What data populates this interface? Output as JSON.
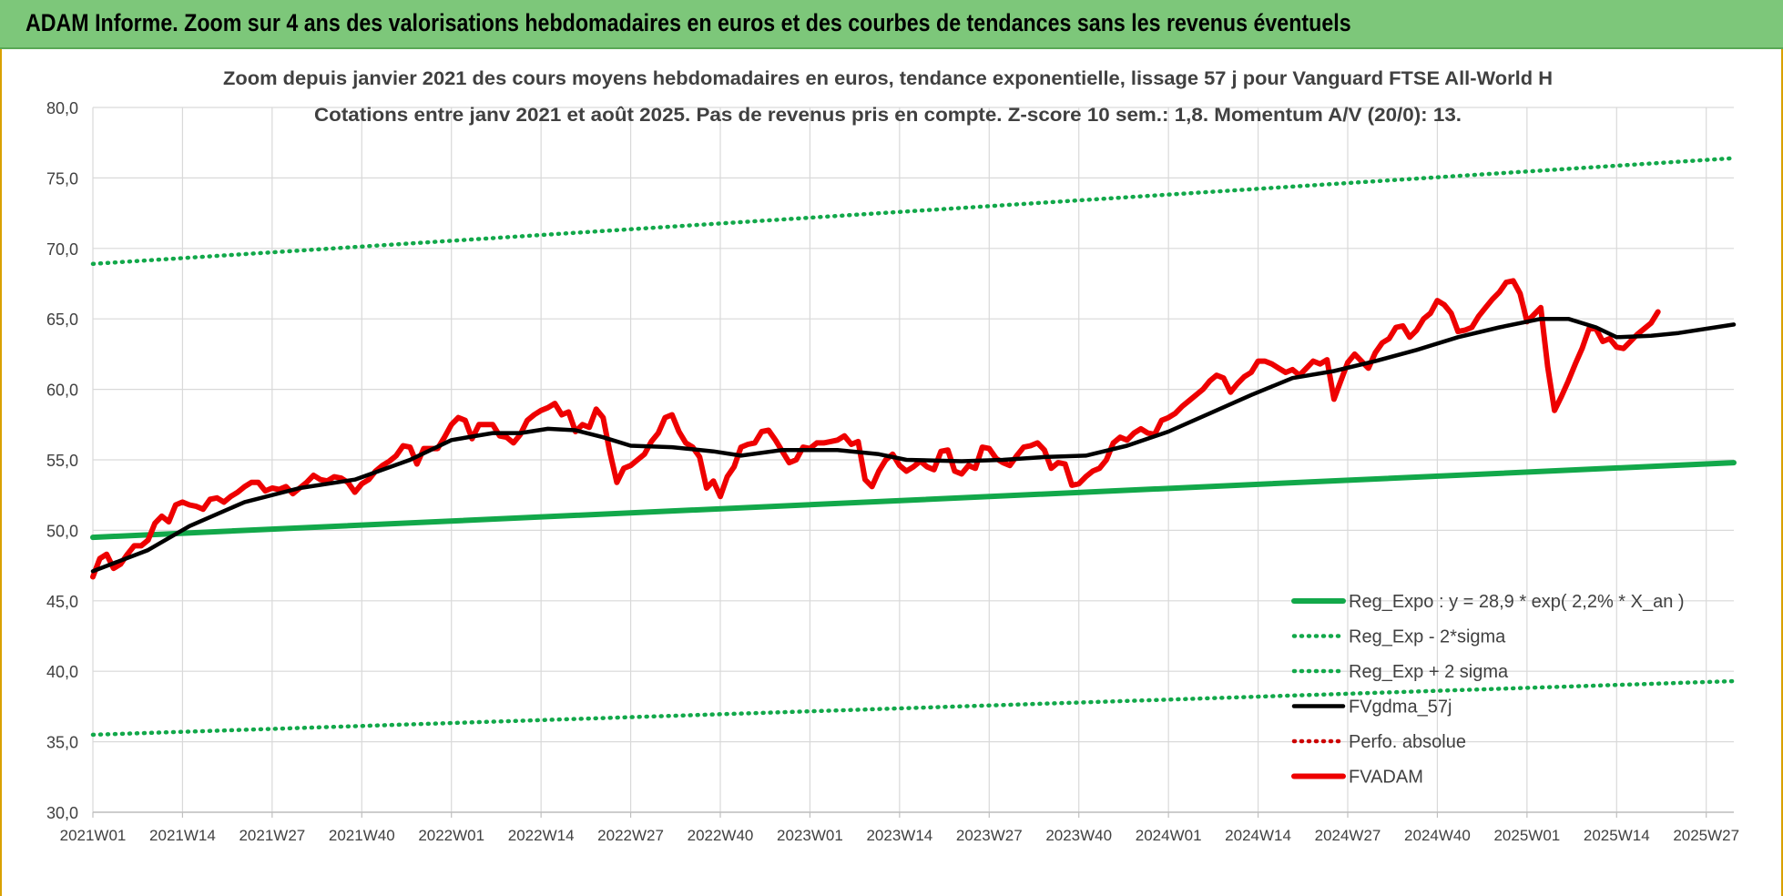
{
  "banner": {
    "title": "ADAM Informe. Zoom sur 4 ans des valorisations hebdomadaires en euros et des courbes de tendances sans les revenus éventuels"
  },
  "colors": {
    "banner": "#7dc77a",
    "regression": "#12a84a",
    "smoothed": "#000000",
    "price": "#ee0000",
    "perf": "#cc0000",
    "grid": "#d9d9d9",
    "text": "#404040"
  },
  "chart_data": {
    "type": "line",
    "title": "Zoom depuis janvier 2021 des cours moyens hebdomadaires en euros, tendance exponentielle, lissage 57 j pour Vanguard FTSE All-World H",
    "subtitle": "Cotations entre janv 2021 et août 2025.  Pas de revenus pris en compte. Z-score 10 sem.: 1,8. Momentum A/V (20/0): 13.",
    "xlabel": "",
    "ylabel": "",
    "ylim": [
      30,
      80
    ],
    "y_ticks": [
      "30,0",
      "35,0",
      "40,0",
      "45,0",
      "50,0",
      "55,0",
      "60,0",
      "65,0",
      "70,0",
      "75,0",
      "80,0"
    ],
    "x_tick_labels": [
      "2021W01",
      "2021W14",
      "2021W27",
      "2021W40",
      "2022W01",
      "2022W14",
      "2022W27",
      "2022W40",
      "2023W01",
      "2023W14",
      "2023W27",
      "2023W40",
      "2024W01",
      "2024W14",
      "2024W27",
      "2024W40",
      "2025W01",
      "2025W14",
      "2025W27"
    ],
    "x_tick_index": [
      0,
      13,
      26,
      39,
      52,
      65,
      78,
      91,
      104,
      117,
      130,
      143,
      156,
      169,
      182,
      195,
      208,
      221,
      234
    ],
    "week_count": 239,
    "grid": true,
    "legend_position": "bottom-right",
    "series": [
      {
        "name": "Reg_Expo : y = 28,9 * exp( 2,2% *  X_an )",
        "style": "solid-thick",
        "color": "#12a84a",
        "points": [
          [
            0,
            49.5
          ],
          [
            238,
            54.8
          ]
        ]
      },
      {
        "name": "Reg_Exp - 2*sigma",
        "style": "dotted",
        "color": "#12a84a",
        "points": [
          [
            0,
            35.5
          ],
          [
            238,
            39.3
          ]
        ]
      },
      {
        "name": "Reg_Exp + 2 sigma",
        "style": "dotted",
        "color": "#12a84a",
        "points": [
          [
            0,
            68.9
          ],
          [
            238,
            76.4
          ]
        ]
      },
      {
        "name": "FVgdma_57j",
        "style": "solid",
        "color": "#000000",
        "points": [
          [
            0,
            47.1
          ],
          [
            8,
            48.6
          ],
          [
            14,
            50.3
          ],
          [
            22,
            52.0
          ],
          [
            30,
            53.0
          ],
          [
            38,
            53.6
          ],
          [
            46,
            55.0
          ],
          [
            52,
            56.4
          ],
          [
            58,
            56.9
          ],
          [
            62,
            56.9
          ],
          [
            66,
            57.2
          ],
          [
            70,
            57.1
          ],
          [
            74,
            56.6
          ],
          [
            78,
            56.0
          ],
          [
            84,
            55.9
          ],
          [
            90,
            55.6
          ],
          [
            94,
            55.3
          ],
          [
            100,
            55.7
          ],
          [
            108,
            55.7
          ],
          [
            114,
            55.4
          ],
          [
            118,
            55.0
          ],
          [
            126,
            54.9
          ],
          [
            132,
            55.0
          ],
          [
            138,
            55.2
          ],
          [
            144,
            55.3
          ],
          [
            150,
            56.0
          ],
          [
            156,
            57.0
          ],
          [
            162,
            58.3
          ],
          [
            168,
            59.6
          ],
          [
            174,
            60.8
          ],
          [
            180,
            61.3
          ],
          [
            186,
            62.0
          ],
          [
            192,
            62.8
          ],
          [
            198,
            63.7
          ],
          [
            204,
            64.4
          ],
          [
            210,
            65.0
          ],
          [
            214,
            65.0
          ],
          [
            218,
            64.4
          ],
          [
            221,
            63.7
          ],
          [
            226,
            63.8
          ],
          [
            230,
            64.0
          ],
          [
            238,
            64.6
          ]
        ]
      },
      {
        "name": "Perfo. absolue",
        "style": "dotted",
        "color": "#cc0000",
        "points": []
      },
      {
        "name": "FVADAM",
        "style": "solid-thick",
        "color": "#ee0000",
        "points": [
          [
            0,
            46.7
          ],
          [
            1,
            48.0
          ],
          [
            2,
            48.3
          ],
          [
            3,
            47.3
          ],
          [
            4,
            47.6
          ],
          [
            5,
            48.3
          ],
          [
            6,
            48.9
          ],
          [
            7,
            48.9
          ],
          [
            8,
            49.3
          ],
          [
            9,
            50.5
          ],
          [
            10,
            51.0
          ],
          [
            11,
            50.6
          ],
          [
            12,
            51.8
          ],
          [
            13,
            52.0
          ],
          [
            14,
            51.8
          ],
          [
            15,
            51.7
          ],
          [
            16,
            51.5
          ],
          [
            17,
            52.2
          ],
          [
            18,
            52.3
          ],
          [
            19,
            52.0
          ],
          [
            20,
            52.4
          ],
          [
            21,
            52.7
          ],
          [
            22,
            53.1
          ],
          [
            23,
            53.4
          ],
          [
            24,
            53.4
          ],
          [
            25,
            52.8
          ],
          [
            26,
            53.0
          ],
          [
            27,
            52.9
          ],
          [
            28,
            53.1
          ],
          [
            29,
            52.6
          ],
          [
            30,
            53.0
          ],
          [
            31,
            53.4
          ],
          [
            32,
            53.9
          ],
          [
            33,
            53.6
          ],
          [
            34,
            53.5
          ],
          [
            35,
            53.8
          ],
          [
            36,
            53.7
          ],
          [
            37,
            53.4
          ],
          [
            38,
            52.7
          ],
          [
            39,
            53.3
          ],
          [
            40,
            53.6
          ],
          [
            41,
            54.2
          ],
          [
            42,
            54.6
          ],
          [
            43,
            54.9
          ],
          [
            44,
            55.3
          ],
          [
            45,
            56.0
          ],
          [
            46,
            55.9
          ],
          [
            47,
            54.7
          ],
          [
            48,
            55.8
          ],
          [
            49,
            55.8
          ],
          [
            50,
            55.8
          ],
          [
            51,
            56.6
          ],
          [
            52,
            57.5
          ],
          [
            53,
            58.0
          ],
          [
            54,
            57.8
          ],
          [
            55,
            56.5
          ],
          [
            56,
            57.5
          ],
          [
            57,
            57.5
          ],
          [
            58,
            57.5
          ],
          [
            59,
            56.7
          ],
          [
            60,
            56.6
          ],
          [
            61,
            56.2
          ],
          [
            62,
            56.8
          ],
          [
            63,
            57.8
          ],
          [
            64,
            58.2
          ],
          [
            65,
            58.5
          ],
          [
            66,
            58.7
          ],
          [
            67,
            59.0
          ],
          [
            68,
            58.2
          ],
          [
            69,
            58.4
          ],
          [
            70,
            57.0
          ],
          [
            71,
            57.5
          ],
          [
            72,
            57.3
          ],
          [
            73,
            58.6
          ],
          [
            74,
            58.0
          ],
          [
            75,
            55.5
          ],
          [
            76,
            53.4
          ],
          [
            77,
            54.4
          ],
          [
            78,
            54.6
          ],
          [
            79,
            55.0
          ],
          [
            80,
            55.4
          ],
          [
            81,
            56.3
          ],
          [
            82,
            56.9
          ],
          [
            83,
            58.0
          ],
          [
            84,
            58.2
          ],
          [
            85,
            57.0
          ],
          [
            86,
            56.2
          ],
          [
            87,
            55.9
          ],
          [
            88,
            55.2
          ],
          [
            89,
            53.0
          ],
          [
            90,
            53.5
          ],
          [
            91,
            52.4
          ],
          [
            92,
            53.8
          ],
          [
            93,
            54.5
          ],
          [
            94,
            55.9
          ],
          [
            95,
            56.1
          ],
          [
            96,
            56.2
          ],
          [
            97,
            57.0
          ],
          [
            98,
            57.1
          ],
          [
            99,
            56.4
          ],
          [
            100,
            55.6
          ],
          [
            101,
            54.8
          ],
          [
            102,
            55.0
          ],
          [
            103,
            55.9
          ],
          [
            104,
            55.8
          ],
          [
            105,
            56.2
          ],
          [
            106,
            56.2
          ],
          [
            107,
            56.3
          ],
          [
            108,
            56.4
          ],
          [
            109,
            56.7
          ],
          [
            110,
            56.1
          ],
          [
            111,
            56.3
          ],
          [
            112,
            53.6
          ],
          [
            113,
            53.1
          ],
          [
            114,
            54.2
          ],
          [
            115,
            55.0
          ],
          [
            116,
            55.4
          ],
          [
            117,
            54.6
          ],
          [
            118,
            54.2
          ],
          [
            119,
            54.5
          ],
          [
            120,
            54.9
          ],
          [
            121,
            54.5
          ],
          [
            122,
            54.3
          ],
          [
            123,
            55.6
          ],
          [
            124,
            55.7
          ],
          [
            125,
            54.2
          ],
          [
            126,
            54.0
          ],
          [
            127,
            54.6
          ],
          [
            128,
            54.4
          ],
          [
            129,
            55.9
          ],
          [
            130,
            55.8
          ],
          [
            131,
            55.1
          ],
          [
            132,
            54.8
          ],
          [
            133,
            54.6
          ],
          [
            134,
            55.3
          ],
          [
            135,
            55.9
          ],
          [
            136,
            56.0
          ],
          [
            137,
            56.2
          ],
          [
            138,
            55.7
          ],
          [
            139,
            54.4
          ],
          [
            140,
            54.8
          ],
          [
            141,
            54.7
          ],
          [
            142,
            53.2
          ],
          [
            143,
            53.3
          ],
          [
            144,
            53.8
          ],
          [
            145,
            54.2
          ],
          [
            146,
            54.4
          ],
          [
            147,
            55.0
          ],
          [
            148,
            56.2
          ],
          [
            149,
            56.6
          ],
          [
            150,
            56.4
          ],
          [
            151,
            56.9
          ],
          [
            152,
            57.2
          ],
          [
            153,
            56.9
          ],
          [
            154,
            56.8
          ],
          [
            155,
            57.8
          ],
          [
            156,
            58.0
          ],
          [
            157,
            58.3
          ],
          [
            158,
            58.8
          ],
          [
            159,
            59.2
          ],
          [
            160,
            59.6
          ],
          [
            161,
            60.0
          ],
          [
            162,
            60.6
          ],
          [
            163,
            61.0
          ],
          [
            164,
            60.8
          ],
          [
            165,
            59.8
          ],
          [
            166,
            60.4
          ],
          [
            167,
            60.9
          ],
          [
            168,
            61.2
          ],
          [
            169,
            62.0
          ],
          [
            170,
            62.0
          ],
          [
            171,
            61.8
          ],
          [
            172,
            61.5
          ],
          [
            173,
            61.2
          ],
          [
            174,
            61.4
          ],
          [
            175,
            61.0
          ],
          [
            176,
            61.5
          ],
          [
            177,
            62.0
          ],
          [
            178,
            61.8
          ],
          [
            179,
            62.1
          ],
          [
            180,
            59.3
          ],
          [
            181,
            60.6
          ],
          [
            182,
            61.9
          ],
          [
            183,
            62.5
          ],
          [
            184,
            62.0
          ],
          [
            185,
            61.5
          ],
          [
            186,
            62.6
          ],
          [
            187,
            63.3
          ],
          [
            188,
            63.6
          ],
          [
            189,
            64.4
          ],
          [
            190,
            64.5
          ],
          [
            191,
            63.7
          ],
          [
            192,
            64.2
          ],
          [
            193,
            65.0
          ],
          [
            194,
            65.4
          ],
          [
            195,
            66.3
          ],
          [
            196,
            66.0
          ],
          [
            197,
            65.4
          ],
          [
            198,
            64.1
          ],
          [
            199,
            64.2
          ],
          [
            200,
            64.4
          ],
          [
            201,
            65.2
          ],
          [
            202,
            65.8
          ],
          [
            203,
            66.4
          ],
          [
            204,
            66.9
          ],
          [
            205,
            67.6
          ],
          [
            206,
            67.7
          ],
          [
            207,
            66.8
          ],
          [
            208,
            64.8
          ],
          [
            209,
            65.3
          ],
          [
            210,
            65.8
          ],
          [
            211,
            61.6
          ],
          [
            212,
            58.5
          ],
          [
            213,
            59.5
          ],
          [
            214,
            60.6
          ],
          [
            215,
            61.8
          ],
          [
            216,
            62.9
          ],
          [
            217,
            64.3
          ],
          [
            218,
            64.3
          ],
          [
            219,
            63.4
          ],
          [
            220,
            63.6
          ],
          [
            221,
            63.0
          ],
          [
            222,
            62.9
          ],
          [
            223,
            63.4
          ],
          [
            224,
            63.9
          ],
          [
            225,
            64.3
          ],
          [
            226,
            64.7
          ],
          [
            227,
            65.5
          ]
        ]
      }
    ]
  }
}
